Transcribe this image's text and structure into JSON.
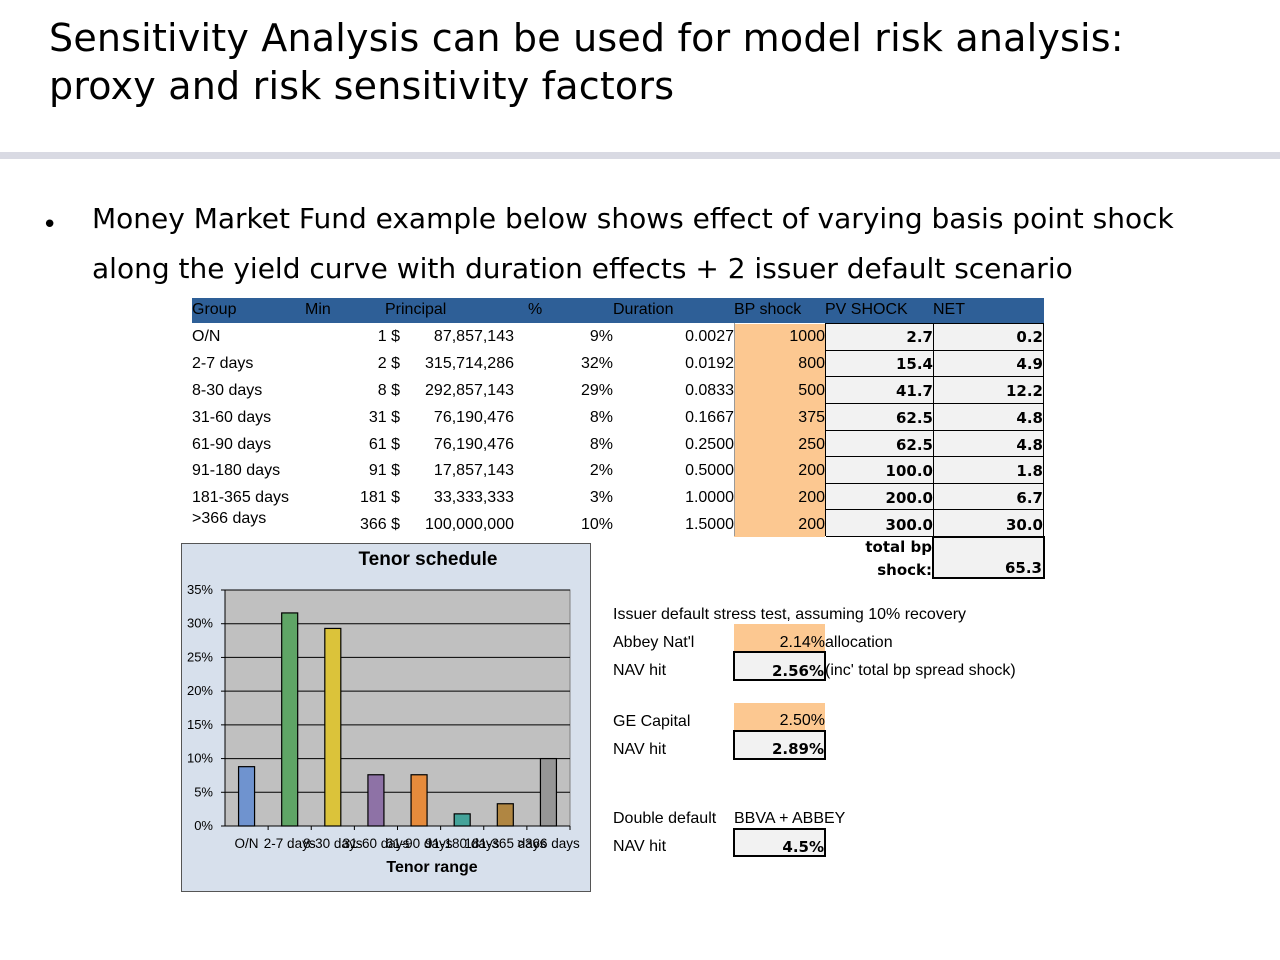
{
  "title_line1": "Sensitivity Analysis can be used for model risk analysis:",
  "title_line2": "proxy and risk sensitivity factors",
  "bullet_line1": "Money Market Fund example below shows effect of varying basis point shock",
  "bullet_line2": "along the yield curve with duration effects + 2 issuer default scenario",
  "table": {
    "headers": {
      "group": "Group",
      "min": "Min",
      "principal": "Principal",
      "pct": "%",
      "duration": "Duration",
      "bp_shock": "BP shock",
      "pv_shock": "PV SHOCK",
      "net": "NET"
    },
    "rows": [
      {
        "group": "O/N",
        "min": "1 $",
        "principal": "87,857,143",
        "pct": "9%",
        "duration": "0.0027",
        "bp": "1000",
        "pv": "2.7",
        "net": "0.2"
      },
      {
        "group": "2-7 days",
        "min": "2 $",
        "principal": "315,714,286",
        "pct": "32%",
        "duration": "0.0192",
        "bp": "800",
        "pv": "15.4",
        "net": "4.9"
      },
      {
        "group": "8-30 days",
        "min": "8 $",
        "principal": "292,857,143",
        "pct": "29%",
        "duration": "0.0833",
        "bp": "500",
        "pv": "41.7",
        "net": "12.2"
      },
      {
        "group": "31-60 days",
        "min": "31 $",
        "principal": "76,190,476",
        "pct": "8%",
        "duration": "0.1667",
        "bp": "375",
        "pv": "62.5",
        "net": "4.8"
      },
      {
        "group": "61-90 days",
        "min": "61 $",
        "principal": "76,190,476",
        "pct": "8%",
        "duration": "0.2500",
        "bp": "250",
        "pv": "62.5",
        "net": "4.8"
      },
      {
        "group": "91-180 days",
        "min": "91 $",
        "principal": "17,857,143",
        "pct": "2%",
        "duration": "0.5000",
        "bp": "200",
        "pv": "100.0",
        "net": "1.8"
      },
      {
        "group": "181-365 days",
        "min": "181 $",
        "principal": "33,333,333",
        "pct": "3%",
        "duration": "1.0000",
        "bp": "200",
        "pv": "200.0",
        "net": "6.7"
      },
      {
        "group": ">366 days",
        "min": "366 $",
        "principal": "100,000,000",
        "pct": "10%",
        "duration": "1.5000",
        "bp": "200",
        "pv": "300.0",
        "net": "30.0"
      }
    ],
    "total_label_1": "total bp",
    "total_label_2": "shock:",
    "total_value": "65.3"
  },
  "stress": {
    "heading": "Issuer default stress test, assuming 10% recovery",
    "abbey_label": "Abbey Nat'l",
    "abbey_alloc": "2.14%",
    "abbey_alloc_note": "allocation",
    "abbey_nav_label": "NAV hit",
    "abbey_nav": "2.56%",
    "abbey_nav_note": "(inc'  total bp spread shock)",
    "ge_label": "GE Capital",
    "ge_alloc": "2.50%",
    "ge_nav_label": "NAV hit",
    "ge_nav": "2.89%",
    "double_label": "Double default",
    "double_names": "BBVA + ABBEY",
    "double_nav_label": "NAV hit",
    "double_nav": "4.5%"
  },
  "colors": {
    "header_blue": "#2e5f97",
    "input_orange": "#fcc891",
    "output_grey": "#f2f2f2",
    "chart_bg": "#d7e0ec",
    "plot_bg": "#c0c0c0"
  },
  "chart_data": {
    "type": "bar",
    "title": "Tenor schedule",
    "xlabel": "Tenor range",
    "ylabel": "",
    "categories": [
      "O/N",
      "2-7 days",
      "8-30 days",
      "31-60 days",
      "61-90 days",
      "91-180 days",
      "181-365 days",
      ">366 days"
    ],
    "values": [
      0.088,
      0.316,
      0.293,
      0.076,
      0.076,
      0.018,
      0.033,
      0.1
    ],
    "colors": [
      "#6f93cf",
      "#5fa566",
      "#dbc33a",
      "#8e72a6",
      "#e68b3c",
      "#44a39a",
      "#b08642",
      "#969696"
    ],
    "ylim": [
      0,
      0.35
    ],
    "yticks": [
      "0%",
      "5%",
      "10%",
      "15%",
      "20%",
      "25%",
      "30%",
      "35%"
    ],
    "grid": true,
    "legend": "none"
  }
}
